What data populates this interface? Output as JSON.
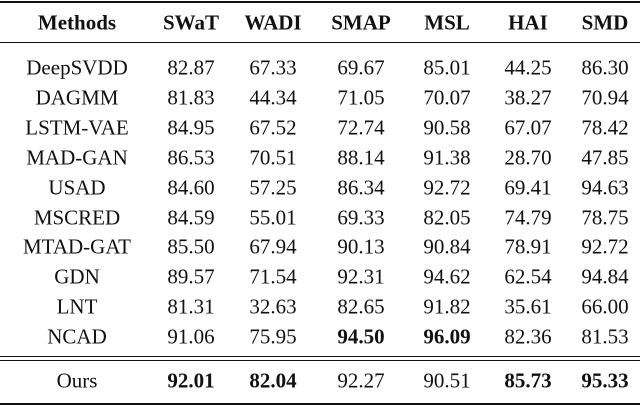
{
  "table": {
    "header": [
      "Methods",
      "SWaT",
      "WADI",
      "SMAP",
      "MSL",
      "HAI",
      "SMD"
    ],
    "rows": [
      {
        "cells": [
          "DeepSVDD",
          "82.87",
          "67.33",
          "69.67",
          "85.01",
          "44.25",
          "86.30"
        ],
        "bold": [
          false,
          false,
          false,
          false,
          false,
          false,
          false
        ]
      },
      {
        "cells": [
          "DAGMM",
          "81.83",
          "44.34",
          "71.05",
          "70.07",
          "38.27",
          "70.94"
        ],
        "bold": [
          false,
          false,
          false,
          false,
          false,
          false,
          false
        ]
      },
      {
        "cells": [
          "LSTM-VAE",
          "84.95",
          "67.52",
          "72.74",
          "90.58",
          "67.07",
          "78.42"
        ],
        "bold": [
          false,
          false,
          false,
          false,
          false,
          false,
          false
        ]
      },
      {
        "cells": [
          "MAD-GAN",
          "86.53",
          "70.51",
          "88.14",
          "91.38",
          "28.70",
          "47.85"
        ],
        "bold": [
          false,
          false,
          false,
          false,
          false,
          false,
          false
        ]
      },
      {
        "cells": [
          "USAD",
          "84.60",
          "57.25",
          "86.34",
          "92.72",
          "69.41",
          "94.63"
        ],
        "bold": [
          false,
          false,
          false,
          false,
          false,
          false,
          false
        ]
      },
      {
        "cells": [
          "MSCRED",
          "84.59",
          "55.01",
          "69.33",
          "82.05",
          "74.79",
          "78.75"
        ],
        "bold": [
          false,
          false,
          false,
          false,
          false,
          false,
          false
        ]
      },
      {
        "cells": [
          "MTAD-GAT",
          "85.50",
          "67.94",
          "90.13",
          "90.84",
          "78.91",
          "92.72"
        ],
        "bold": [
          false,
          false,
          false,
          false,
          false,
          false,
          false
        ]
      },
      {
        "cells": [
          "GDN",
          "89.57",
          "71.54",
          "92.31",
          "94.62",
          "62.54",
          "94.84"
        ],
        "bold": [
          false,
          false,
          false,
          false,
          false,
          false,
          false
        ]
      },
      {
        "cells": [
          "LNT",
          "81.31",
          "32.63",
          "82.65",
          "91.82",
          "35.61",
          "66.00"
        ],
        "bold": [
          false,
          false,
          false,
          false,
          false,
          false,
          false
        ]
      },
      {
        "cells": [
          "NCAD",
          "91.06",
          "75.95",
          "94.50",
          "96.09",
          "82.36",
          "81.53"
        ],
        "bold": [
          false,
          false,
          false,
          true,
          true,
          false,
          false
        ]
      }
    ],
    "summary_row": {
      "cells": [
        "Ours",
        "92.01",
        "82.04",
        "92.27",
        "90.51",
        "85.73",
        "95.33"
      ],
      "bold": [
        false,
        true,
        true,
        false,
        false,
        true,
        true
      ]
    }
  }
}
